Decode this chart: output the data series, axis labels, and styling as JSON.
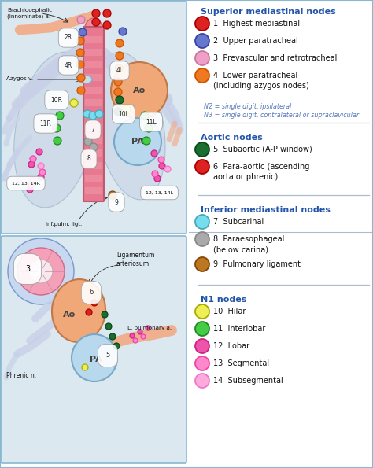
{
  "figure_bg": "#ffffff",
  "panel_bg": "#dce8f0",
  "border_color": "#88b8d0",
  "legend_bg": "#ffffff",
  "title_color": "#2255aa",
  "text_color": "#111111",
  "note_color": "#5577bb",
  "divider_color": "#aabbcc",
  "superior_title": "Superior mediastinal nodes",
  "aortic_title": "Aortic nodes",
  "inferior_title": "Inferior mediastinal nodes",
  "n1_title": "N1 nodes",
  "n2_note1": "N2 = single digit, ipsilateral",
  "n2_note2": "N3 = single digit, contralateral or supraclavicular",
  "entries_superior": [
    {
      "num": "1",
      "label": "Highest mediastinal",
      "color": "#dd2222",
      "outline": "#aa0000",
      "label2": ""
    },
    {
      "num": "2",
      "label": "Upper paratracheal",
      "color": "#6677cc",
      "outline": "#3344aa",
      "label2": ""
    },
    {
      "num": "3",
      "label": "Prevascular and retrotracheal",
      "color": "#f0a0c8",
      "outline": "#cc7799",
      "label2": ""
    },
    {
      "num": "4",
      "label": "Lower paratracheal",
      "color": "#f07820",
      "outline": "#cc5500",
      "label2": "(including azygos nodes)"
    }
  ],
  "entries_aortic": [
    {
      "num": "5",
      "label": "Subaortic (A-P window)",
      "color": "#1a6e30",
      "outline": "#0a4a18",
      "label2": ""
    },
    {
      "num": "6",
      "label": "Para-aortic (ascending",
      "color": "#dd2222",
      "outline": "#aa0000",
      "label2": "aorta or phrenic)"
    }
  ],
  "entries_inferior": [
    {
      "num": "7",
      "label": "Subcarinal",
      "color": "#77ddee",
      "outline": "#44aabb",
      "label2": ""
    },
    {
      "num": "8",
      "label": "Paraesophageal",
      "color": "#aaaaaa",
      "outline": "#888888",
      "label2": "(below carina)"
    },
    {
      "num": "9",
      "label": "Pulmonary ligament",
      "color": "#bb7722",
      "outline": "#884400",
      "label2": ""
    }
  ],
  "entries_n1": [
    {
      "num": "10",
      "label": "Hilar",
      "color": "#eeee55",
      "outline": "#aaaa00",
      "label2": ""
    },
    {
      "num": "11",
      "label": "Interlobar",
      "color": "#44cc44",
      "outline": "#228822",
      "label2": ""
    },
    {
      "num": "12",
      "label": "Lobar",
      "color": "#ee55aa",
      "outline": "#cc2288",
      "label2": ""
    },
    {
      "num": "13",
      "label": "Segmental",
      "color": "#ff88cc",
      "outline": "#ee44aa",
      "label2": ""
    },
    {
      "num": "14",
      "label": "Subsegmental",
      "color": "#ffaadd",
      "outline": "#ee77cc",
      "label2": ""
    }
  ]
}
